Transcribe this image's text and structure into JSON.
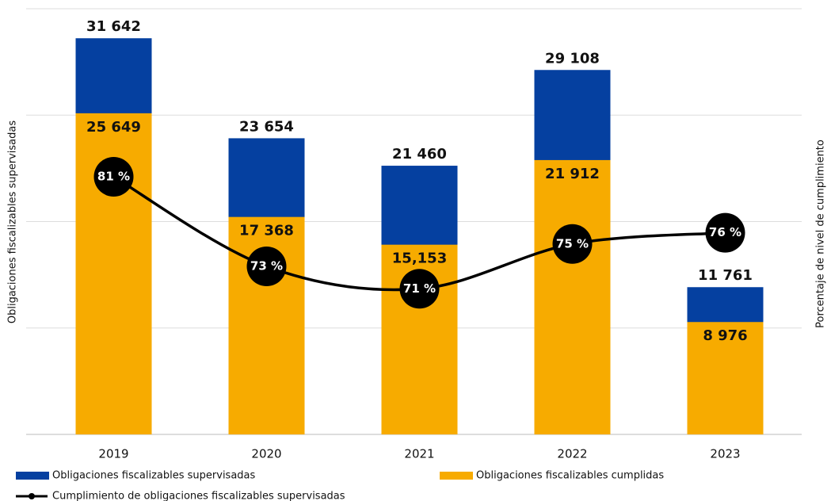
{
  "chart_data": {
    "type": "bar_line",
    "categories": [
      "2019",
      "2020",
      "2021",
      "2022",
      "2023"
    ],
    "y_label": "Obligaciones fiscalizables supervisadas",
    "y2_label": "Porcentaje de nivel de cumplimiento",
    "ylim": [
      0,
      34000
    ],
    "yticks": [
      0,
      8500,
      17000,
      25500,
      34000
    ],
    "grid": true,
    "y2lim": [
      58,
      96
    ],
    "series": [
      {
        "name": "Obligaciones fiscalizables supervisadas",
        "color": "#0540a0",
        "kind": "bar",
        "values": [
          31642,
          23654,
          21460,
          29108,
          11761
        ],
        "value_labels": [
          "31 642",
          "23 654",
          "21 460",
          "29 108",
          "11 761"
        ]
      },
      {
        "name": "Obligaciones fiscalizables cumplidas",
        "color": "#f7ab00",
        "kind": "bar",
        "values": [
          25649,
          17368,
          15153,
          21912,
          8976
        ],
        "value_labels": [
          "25 649",
          "17 368",
          "15,153",
          "21 912",
          "8 976"
        ]
      },
      {
        "name": "Cumplimiento de obligaciones fiscalizables supervisadas",
        "color": "#000000",
        "kind": "line",
        "axis": "y2",
        "values": [
          81,
          73,
          71,
          75,
          76
        ],
        "value_labels": [
          "81 %",
          "73 %",
          "71 %",
          "75 %",
          "76 %"
        ]
      }
    ]
  }
}
